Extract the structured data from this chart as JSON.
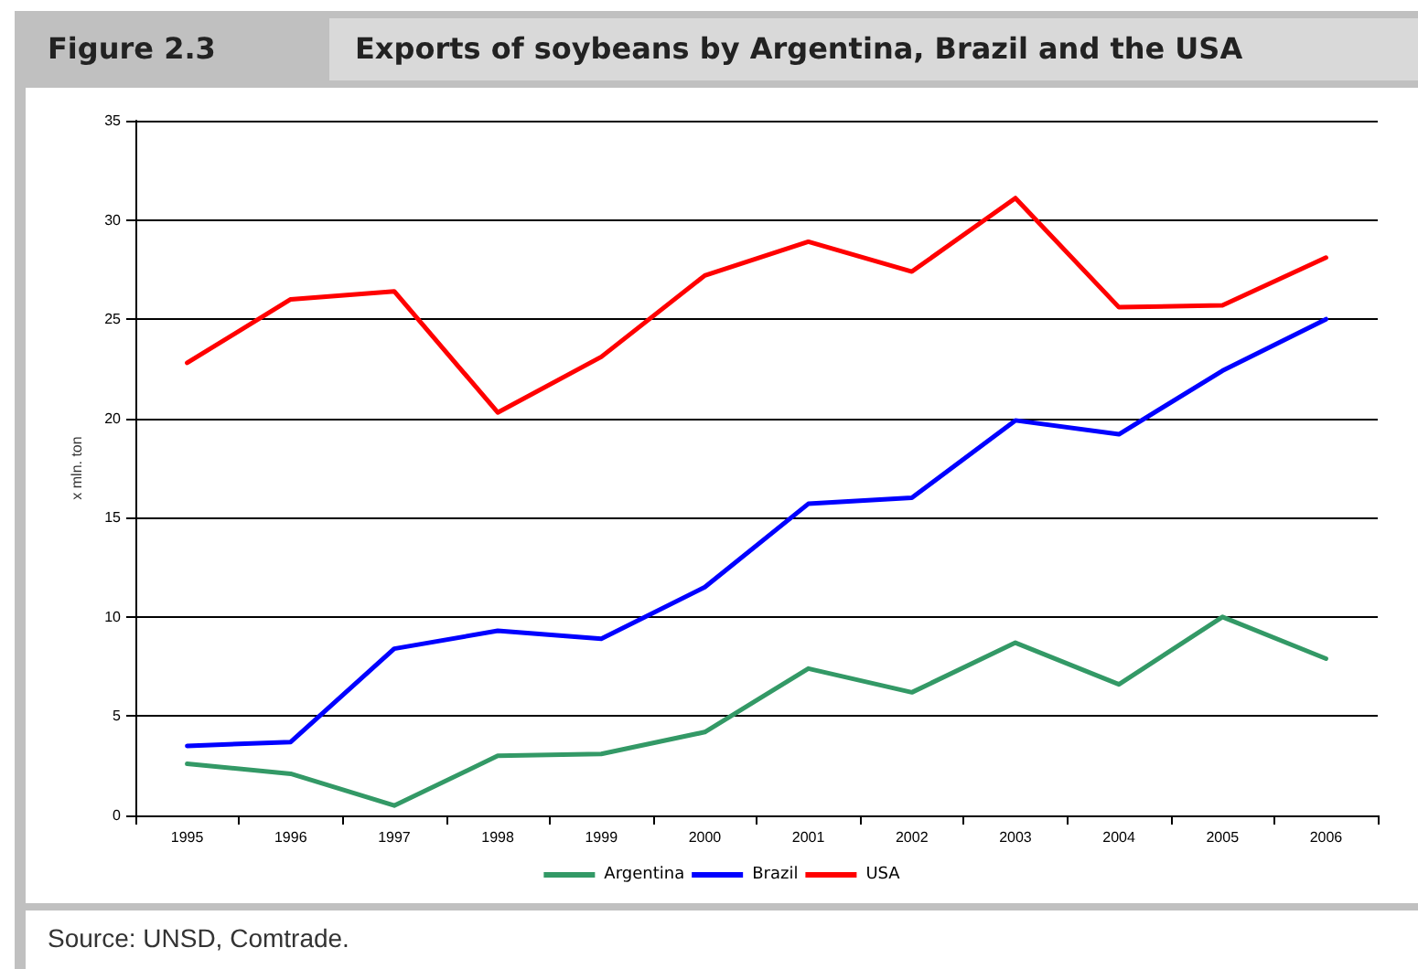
{
  "chart_data": {
    "type": "line",
    "title": "Exports of soybeans by Argentina, Brazil and the USA",
    "subtitle": "Figure 2.3",
    "ylabel": "x mln. ton",
    "categories": [
      "1995",
      "1996",
      "1997",
      "1998",
      "1999",
      "2000",
      "2001",
      "2002",
      "2003",
      "2004",
      "2005",
      "2006"
    ],
    "series": [
      {
        "name": "Argentina",
        "color": "#339966",
        "values": [
          2.6,
          2.1,
          0.5,
          3.0,
          3.1,
          4.2,
          7.4,
          6.2,
          8.7,
          6.6,
          10.0,
          7.9
        ]
      },
      {
        "name": "Brazil",
        "color": "#0000ff",
        "values": [
          3.5,
          3.7,
          8.4,
          9.3,
          8.9,
          11.5,
          15.7,
          16.0,
          19.9,
          19.2,
          22.4,
          25.0
        ]
      },
      {
        "name": "USA",
        "color": "#ff0000",
        "values": [
          22.8,
          26.0,
          26.4,
          20.3,
          23.1,
          27.2,
          28.9,
          27.4,
          31.1,
          25.6,
          25.7,
          28.1
        ]
      }
    ],
    "ylim": [
      0,
      35
    ],
    "yticks": [
      0,
      5,
      10,
      15,
      20,
      25,
      30,
      35
    ],
    "grid": "y",
    "legend": "bottom",
    "marker": "none",
    "line_style": "solid",
    "annotations": [
      "Source: UNSD, Comtrade."
    ]
  }
}
